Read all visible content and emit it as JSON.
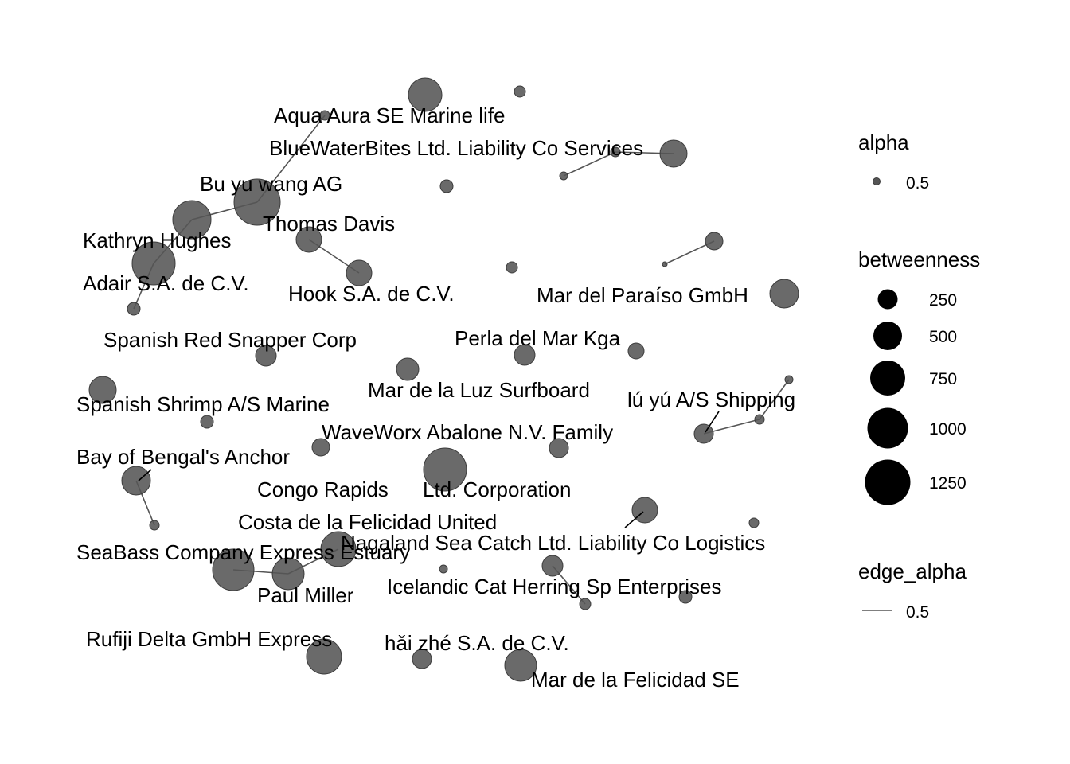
{
  "colors": {
    "node_fill": "#555555",
    "node_stroke": "#3c3c3c",
    "edge": "#555555",
    "legend_key": "#000000"
  },
  "legend": {
    "alpha": {
      "title": "alpha",
      "value_label": "0.5"
    },
    "betweenness": {
      "title": "betweenness",
      "entries": [
        {
          "label": "250",
          "value": 250
        },
        {
          "label": "500",
          "value": 500
        },
        {
          "label": "750",
          "value": 750
        },
        {
          "label": "1000",
          "value": 1000
        },
        {
          "label": "1250",
          "value": 1250
        }
      ]
    },
    "edge_alpha": {
      "title": "edge_alpha",
      "value_label": "0.5"
    }
  },
  "labels": [
    "Aqua Aura SE Marine life",
    "BlueWaterBites Ltd. Liability Co Services",
    "Bu yu wang AG",
    "Thomas Davis",
    "Kathryn Hughes",
    "Adair S.A. de C.V.",
    "Hook S.A. de C.V.",
    "Mar del Paraíso GmbH",
    "Spanish Red Snapper Corp",
    "Perla del Mar Kga",
    "Mar de la Luz Surfboard",
    "lú yú A/S Shipping",
    "Spanish Shrimp A/S Marine",
    "WaveWorx Abalone N.V. Family",
    "Bay of Bengal's Anchor",
    "Congo Rapids",
    "Ltd. Corporation",
    "Costa de la Felicidad United",
    "Nagaland Sea Catch Ltd. Liability Co Logistics",
    "SeaBass Company Express Estuary",
    "Icelandic Cat Herring Sp Enterprises",
    "Paul Miller",
    "Rufiji Delta  GmbH Express",
    "hǎi zhé S.A. de C.V.",
    "Mar de la Felicidad SE"
  ]
}
